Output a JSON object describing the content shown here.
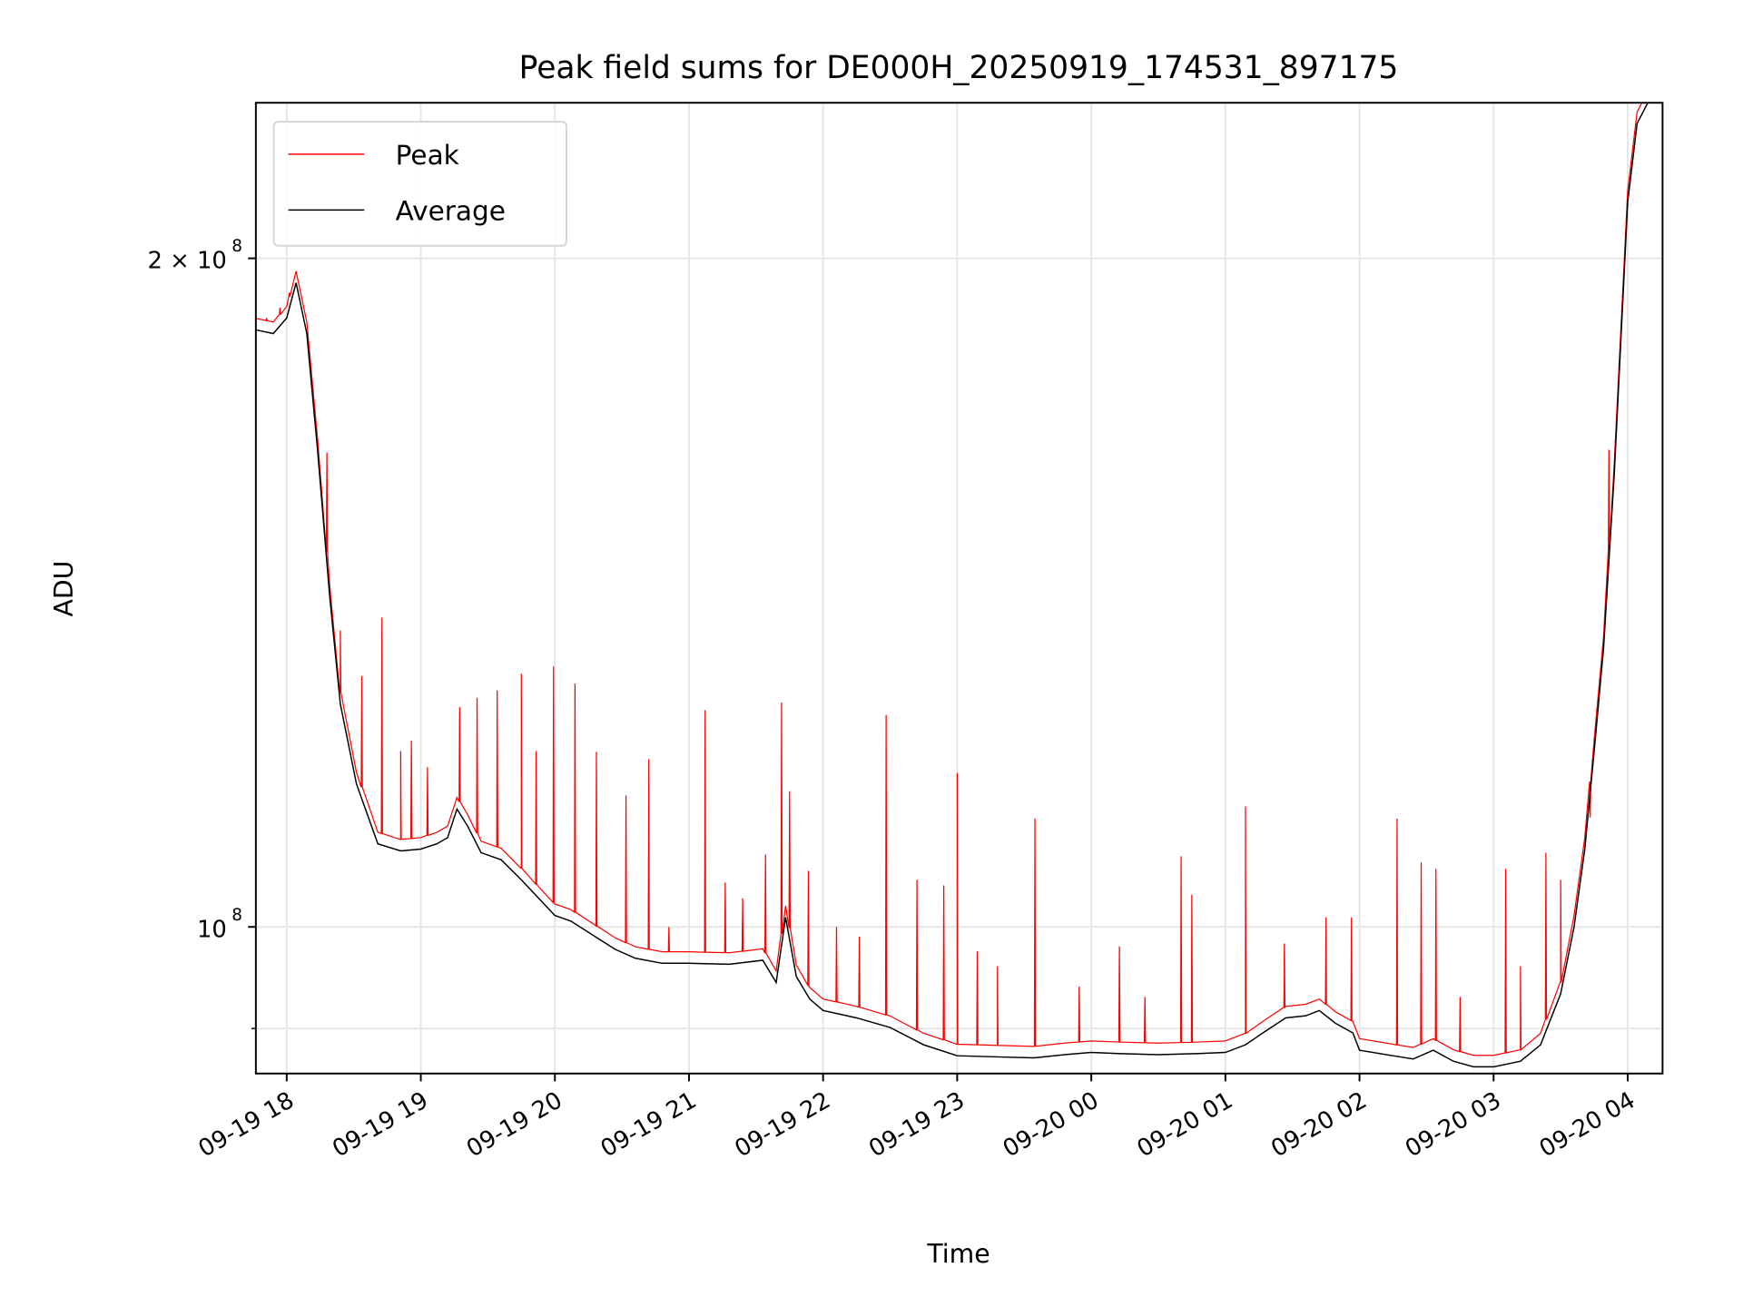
{
  "chart_data": {
    "type": "line",
    "title": "Peak field sums for DE000H_20250919_174531_897175",
    "xlabel": "Time",
    "ylabel": "ADU",
    "x_units": "hours since 09-19 00:00",
    "xlim": [
      17.77,
      28.26
    ],
    "ylim": [
      85900000.0,
      235000000.0
    ],
    "yscale": "log",
    "grid": true,
    "legend": {
      "placement": "top-left",
      "entries": [
        {
          "label": "Peak",
          "color": "#ff0000"
        },
        {
          "label": "Average",
          "color": "#000000"
        }
      ]
    },
    "x_ticks": [
      {
        "value": 18,
        "label": "09-19 18"
      },
      {
        "value": 19,
        "label": "09-19 19"
      },
      {
        "value": 20,
        "label": "09-19 20"
      },
      {
        "value": 21,
        "label": "09-19 21"
      },
      {
        "value": 22,
        "label": "09-19 22"
      },
      {
        "value": 23,
        "label": "09-19 23"
      },
      {
        "value": 24,
        "label": "09-20 00"
      },
      {
        "value": 25,
        "label": "09-20 01"
      },
      {
        "value": 26,
        "label": "09-20 02"
      },
      {
        "value": 27,
        "label": "09-20 03"
      },
      {
        "value": 28,
        "label": "09-20 04"
      }
    ],
    "y_ticks": [
      {
        "value": 200000000.0,
        "base": "2 × 10",
        "exp": "8"
      },
      {
        "value": 100000000.0,
        "base": "10",
        "exp": "8"
      }
    ],
    "y_minor_ticks": [
      90000000.0
    ],
    "series": [
      {
        "name": "Average",
        "color": "#000000",
        "x": [
          17.77,
          17.9,
          18.0,
          18.07,
          18.15,
          18.23,
          18.32,
          18.4,
          18.52,
          18.68,
          18.85,
          19.0,
          19.12,
          19.2,
          19.27,
          19.35,
          19.45,
          19.6,
          19.75,
          19.88,
          20.0,
          20.12,
          20.3,
          20.45,
          20.6,
          20.8,
          21.0,
          21.3,
          21.55,
          21.65,
          21.72,
          21.8,
          21.9,
          22.0,
          22.25,
          22.5,
          22.75,
          23.0,
          23.3,
          23.57,
          23.8,
          24.0,
          24.2,
          24.5,
          24.8,
          25.0,
          25.15,
          25.28,
          25.45,
          25.6,
          25.7,
          25.82,
          25.95,
          26.0,
          26.25,
          26.4,
          26.55,
          26.7,
          26.85,
          27.0,
          27.2,
          27.35,
          27.5,
          27.6,
          27.68,
          27.75,
          27.82,
          27.9,
          28.0,
          28.07,
          28.15,
          28.26
        ],
        "y": [
          185700000.0,
          185000000.0,
          188000000.0,
          195000000.0,
          185000000.0,
          164000000.0,
          141000000.0,
          126000000.0,
          116000000.0,
          109000000.0,
          108200000.0,
          108400000.0,
          109000000.0,
          109700000.0,
          113000000.0,
          111000000.0,
          108000000.0,
          107200000.0,
          105000000.0,
          103000000.0,
          101200000.0,
          100600000.0,
          99000000.0,
          97700000.0,
          96800000.0,
          96300000.0,
          96300000.0,
          96200000.0,
          96600000.0,
          94400000.0,
          101000000.0,
          95000000.0,
          92800000.0,
          91700000.0,
          91000000.0,
          90100000.0,
          88500000.0,
          87500000.0,
          87400000.0,
          87300000.0,
          87600000.0,
          87800000.0,
          87700000.0,
          87600000.0,
          87700000.0,
          87800000.0,
          88500000.0,
          89600000.0,
          91000000.0,
          91200000.0,
          91700000.0,
          90500000.0,
          89600000.0,
          88000000.0,
          87500000.0,
          87200000.0,
          88000000.0,
          87000000.0,
          86500000.0,
          86500000.0,
          87000000.0,
          88500000.0,
          93300000.0,
          100000000.0,
          108400000.0,
          120000000.0,
          133500000.0,
          160000000.0,
          212000000.0,
          230000000.0,
          235000000.0,
          235000000.0
        ]
      },
      {
        "name": "Peak",
        "color": "#ff0000",
        "baseline_ratio_to_average": 1.012,
        "spikes_x": [
          17.85,
          17.95,
          18.02,
          18.3,
          18.4,
          18.56,
          18.71,
          18.85,
          18.93,
          19.05,
          19.29,
          19.42,
          19.57,
          19.75,
          19.86,
          19.99,
          20.15,
          20.31,
          20.53,
          20.7,
          20.85,
          21.12,
          21.27,
          21.4,
          21.57,
          21.69,
          21.75,
          21.89,
          22.1,
          22.27,
          22.47,
          22.7,
          22.9,
          23.0,
          23.15,
          23.3,
          23.58,
          23.91,
          24.21,
          24.4,
          24.67,
          24.75,
          25.15,
          25.44,
          25.75,
          25.94,
          26.28,
          26.46,
          26.57,
          26.75,
          27.09,
          27.2,
          27.39,
          27.5,
          27.72,
          27.86
        ],
        "spikes_y": [
          188000000.0,
          190000000.0,
          193000000.0,
          163500000.0,
          136000000.0,
          129700000.0,
          137800000.0,
          120000000.0,
          121300000.0,
          118000000.0,
          125600000.0,
          126800000.0,
          127800000.0,
          130000000.0,
          120000000.0,
          131000000.0,
          128700000.0,
          119900000.0,
          114600000.0,
          119000000.0,
          100000000.0,
          125200000.0,
          104700000.0,
          103000000.0,
          107800000.0,
          126200000.0,
          115100000.0,
          106000000.0,
          100000000.0,
          99000000.0,
          124600000.0,
          105000000.0,
          104400000.0,
          117300000.0,
          97500000.0,
          96000000.0,
          111900000.0,
          94000000.0,
          98000000.0,
          93000000.0,
          107600000.0,
          103400000.0,
          113300000.0,
          98300000.0,
          101000000.0,
          101000000.0,
          111900000.0,
          106900000.0,
          106200000.0,
          93000000.0,
          106200000.0,
          96000000.0,
          108000000.0,
          105000000.0,
          112000000.0,
          164000000.0
        ]
      }
    ]
  }
}
